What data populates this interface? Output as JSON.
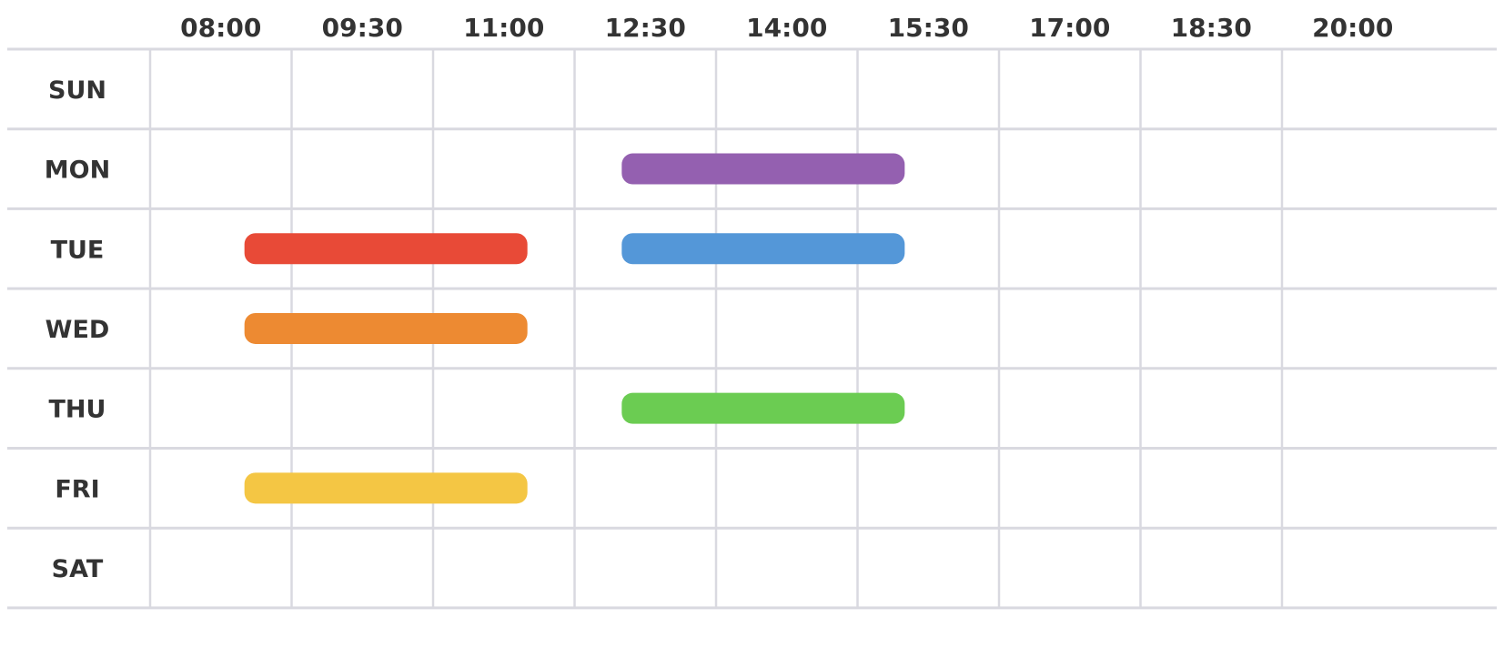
{
  "chart_data": {
    "type": "bar",
    "x_ticks": [
      "08:00",
      "09:30",
      "11:00",
      "12:30",
      "14:00",
      "15:30",
      "17:00",
      "18:30",
      "20:00"
    ],
    "days": [
      "SUN",
      "MON",
      "TUE",
      "WED",
      "THU",
      "FRI",
      "SAT"
    ],
    "bars": [
      {
        "day": "MON",
        "start": "13:00",
        "end": "16:00",
        "color": "#9460b0"
      },
      {
        "day": "TUE",
        "start": "09:00",
        "end": "12:00",
        "color": "#e84a37"
      },
      {
        "day": "TUE",
        "start": "13:00",
        "end": "16:00",
        "color": "#5497d8"
      },
      {
        "day": "WED",
        "start": "09:00",
        "end": "12:00",
        "color": "#ed8a32"
      },
      {
        "day": "THU",
        "start": "13:00",
        "end": "16:00",
        "color": "#6bcc52"
      },
      {
        "day": "FRI",
        "start": "09:00",
        "end": "12:00",
        "color": "#f4c644"
      }
    ],
    "grid": true,
    "colors": {
      "grid": "#d9d9e0",
      "text": "#333333"
    }
  }
}
